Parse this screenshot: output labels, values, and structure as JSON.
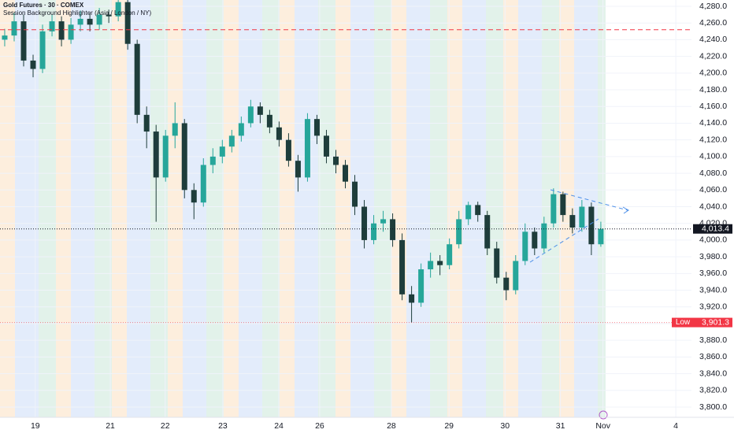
{
  "chart_data": {
    "type": "candlestick",
    "title": "Gold Futures · 30 · COMEX",
    "subtitle": "Session Background Highlighter (Asia / London / NY)",
    "up_color": "#26a69a",
    "down_color": "#1e3d3b",
    "xlim": [
      0,
      12.35
    ],
    "xticks": [
      {
        "value": 0.63,
        "label": "19"
      },
      {
        "value": 1.97,
        "label": "21"
      },
      {
        "value": 2.95,
        "label": "22"
      },
      {
        "value": 3.98,
        "label": "23"
      },
      {
        "value": 4.98,
        "label": "24"
      },
      {
        "value": 5.71,
        "label": "26"
      },
      {
        "value": 6.99,
        "label": "28"
      },
      {
        "value": 8.02,
        "label": "29"
      },
      {
        "value": 9.02,
        "label": "30"
      },
      {
        "value": 10.01,
        "label": "31"
      },
      {
        "value": 10.77,
        "label": "Nov"
      },
      {
        "value": 12.07,
        "label": "4"
      }
    ],
    "ylim": [
      3790,
      4290
    ],
    "yticks": [
      {
        "value": 3800,
        "label": "3,800.0"
      },
      {
        "value": 3820,
        "label": "3,820.0"
      },
      {
        "value": 3840,
        "label": "3,840.0"
      },
      {
        "value": 3860,
        "label": "3,860.0"
      },
      {
        "value": 3880,
        "label": "3,880.0"
      },
      {
        "value": 3900,
        "label": "3,900.0"
      },
      {
        "value": 3920,
        "label": "3,920.0"
      },
      {
        "value": 3940,
        "label": "3,940.0"
      },
      {
        "value": 3960,
        "label": "3,960.0"
      },
      {
        "value": 3980,
        "label": "3,980.0"
      },
      {
        "value": 4000,
        "label": "4,000.0"
      },
      {
        "value": 4020,
        "label": "4,020.0"
      },
      {
        "value": 4040,
        "label": "4,040.0"
      },
      {
        "value": 4060,
        "label": "4,060.0"
      },
      {
        "value": 4080,
        "label": "4,080.0"
      },
      {
        "value": 4100,
        "label": "4,100.0"
      },
      {
        "value": 4120,
        "label": "4,120.0"
      },
      {
        "value": 4140,
        "label": "4,140.0"
      },
      {
        "value": 4160,
        "label": "4,160.0"
      },
      {
        "value": 4180,
        "label": "4,180.0"
      },
      {
        "value": 4200,
        "label": "4,200.0"
      },
      {
        "value": 4220,
        "label": "4,220.0"
      },
      {
        "value": 4240,
        "label": "4,240.0"
      },
      {
        "value": 4260,
        "label": "4,260.0"
      },
      {
        "value": 4280,
        "label": "4,280.0"
      }
    ],
    "grid": true,
    "x": [
      0.084,
      0.253,
      0.422,
      0.591,
      0.76,
      0.929,
      1.098,
      1.267,
      1.436,
      1.605,
      1.774,
      1.943,
      2.112,
      2.281,
      2.45,
      2.619,
      2.788,
      2.957,
      3.126,
      3.295,
      3.464,
      3.633,
      3.802,
      3.971,
      4.14,
      4.309,
      4.478,
      4.647,
      4.816,
      4.985,
      5.154,
      5.323,
      5.492,
      5.661,
      5.83,
      5.999,
      6.168,
      6.337,
      6.506,
      6.675,
      6.844,
      7.013,
      7.182,
      7.351,
      7.52,
      7.689,
      7.858,
      8.027,
      8.196,
      8.365,
      8.534,
      8.703,
      8.872,
      9.041,
      9.21,
      9.379,
      9.548,
      9.717,
      9.886,
      10.055,
      10.224,
      10.393,
      10.562,
      10.731
    ],
    "open": [
      4240,
      4245,
      4262,
      4215,
      4205,
      4250,
      4262,
      4240,
      4258,
      4265,
      4258,
      4270,
      4268,
      4285,
      4235,
      4150,
      4130,
      4075,
      4125,
      4140,
      4060,
      4045,
      4090,
      4100,
      4112,
      4125,
      4140,
      4160,
      4150,
      4135,
      4120,
      4095,
      4075,
      4145,
      4125,
      4100,
      4090,
      4070,
      4040,
      4000,
      4020,
      4025,
      4000,
      3935,
      3925,
      3965,
      3975,
      3970,
      3995,
      4025,
      4042,
      4030,
      3990,
      3955,
      3940,
      3975,
      4010,
      3990,
      4020,
      4055,
      4030,
      4015,
      4040,
      3995
    ],
    "high": [
      4253,
      4272,
      4270,
      4222,
      4258,
      4270,
      4268,
      4266,
      4275,
      4272,
      4278,
      4276,
      4292,
      4288,
      4240,
      4160,
      4138,
      4132,
      4165,
      4145,
      4068,
      4098,
      4110,
      4120,
      4132,
      4148,
      4168,
      4165,
      4156,
      4142,
      4128,
      4102,
      4152,
      4150,
      4132,
      4108,
      4096,
      4078,
      4048,
      4030,
      4035,
      4032,
      4008,
      3945,
      3972,
      3985,
      3982,
      4002,
      4035,
      4046,
      4046,
      4035,
      3998,
      3962,
      3982,
      4020,
      4015,
      4028,
      4062,
      4058,
      4038,
      4048,
      4045,
      4022
    ],
    "low": [
      4232,
      4238,
      4208,
      4195,
      4200,
      4244,
      4232,
      4235,
      4250,
      4250,
      4252,
      4260,
      4262,
      4228,
      4140,
      4110,
      4022,
      4070,
      4110,
      4050,
      4025,
      4040,
      4080,
      4092,
      4105,
      4118,
      4135,
      4140,
      4128,
      4112,
      4088,
      4058,
      4070,
      4115,
      4092,
      4080,
      4062,
      4030,
      3990,
      3995,
      4010,
      3992,
      3928,
      3901.3,
      3920,
      3955,
      3958,
      3965,
      3990,
      4018,
      4022,
      3982,
      3948,
      3928,
      3935,
      3970,
      3982,
      3985,
      4015,
      4022,
      4008,
      4010,
      3982,
      3992
    ],
    "close": [
      4245,
      4262,
      4215,
      4205,
      4250,
      4262,
      4240,
      4258,
      4265,
      4258,
      4270,
      4268,
      4285,
      4235,
      4150,
      4130,
      4075,
      4125,
      4140,
      4060,
      4045,
      4090,
      4100,
      4112,
      4125,
      4140,
      4160,
      4150,
      4135,
      4120,
      4095,
      4075,
      4145,
      4125,
      4100,
      4090,
      4070,
      4040,
      4000,
      4020,
      4025,
      4000,
      3935,
      3925,
      3965,
      3975,
      3970,
      3995,
      4025,
      4042,
      4030,
      3990,
      3955,
      3940,
      3975,
      4010,
      3990,
      4020,
      4055,
      4030,
      4015,
      4040,
      3995,
      4013.4
    ],
    "reference_line": {
      "value": 4252,
      "color": "#f23645"
    },
    "price_line": {
      "value": 4013.4,
      "value_label": "4,013.4"
    },
    "low_line": {
      "name": "Low",
      "value": 3901.3,
      "value_label": "3,901.3",
      "color": "#f23645"
    }
  }
}
